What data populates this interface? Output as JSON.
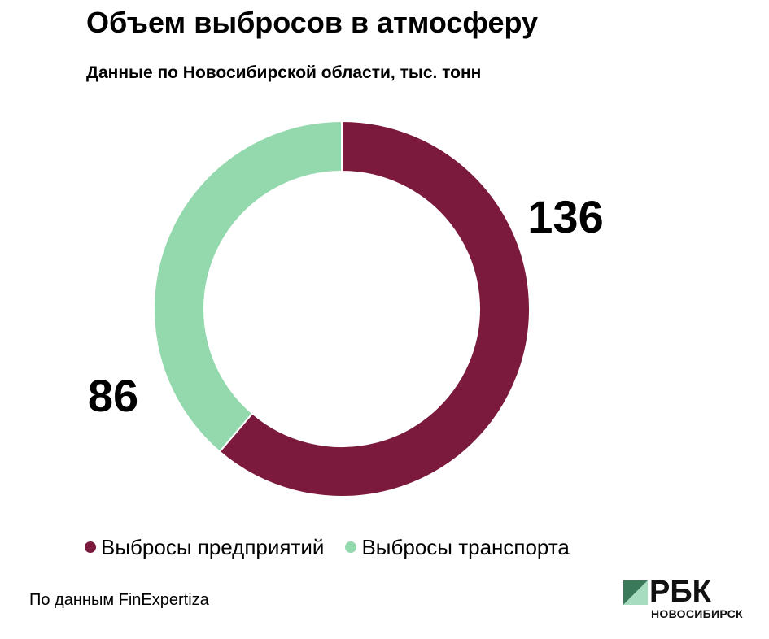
{
  "header": {
    "title": "Объем выбросов в атмосферу",
    "subtitle": "Данные по Новосибирской области, тыс. тонн"
  },
  "chart_data": {
    "type": "pie",
    "variant": "donut",
    "title": "Объем выбросов в атмосферу",
    "subtitle": "Данные по Новосибирской области, тыс. тонн",
    "categories": [
      "Выбросы предприятий",
      "Выбросы транспорта"
    ],
    "values": [
      136,
      86
    ],
    "colors": [
      "#7b1a3d",
      "#94d9ae"
    ],
    "data_labels": [
      "136",
      "86"
    ],
    "legend_position": "bottom",
    "start": "top, clockwise"
  },
  "legend": {
    "items": [
      {
        "label": "Выбросы предприятий",
        "color": "#7b1a3d"
      },
      {
        "label": "Выбросы транспорта",
        "color": "#94d9ae"
      }
    ]
  },
  "footer": {
    "source": "По данным FinExpertiza",
    "logo_text": "РБК",
    "logo_city": "НОВОСИБИРСК",
    "logo_colors": [
      "#3a7a5a",
      "#a7dcc0"
    ]
  }
}
